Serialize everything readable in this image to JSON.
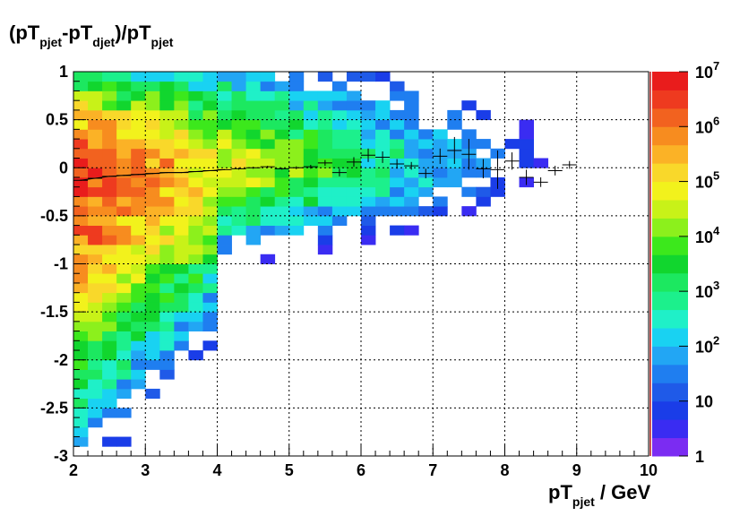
{
  "chart_data": {
    "type": "heatmap",
    "title": "",
    "ylabel_parts": [
      "(pT",
      "pjet",
      "-pT",
      "djet",
      ")/pT",
      "pjet"
    ],
    "xlabel_parts": [
      "pT",
      "pjet",
      " / GeV"
    ],
    "xlim": [
      2,
      10
    ],
    "ylim": [
      -3,
      1
    ],
    "x_bin_width": 0.2,
    "y_bin_width": 0.1,
    "grid": true,
    "color_scale": "log",
    "z_range": [
      1,
      10000000
    ],
    "x_ticks": [
      "2",
      "3",
      "4",
      "5",
      "6",
      "7",
      "8",
      "9",
      "10"
    ],
    "y_ticks": [
      "1",
      "0.5",
      "0",
      "-0.5",
      "-1",
      "-1.5",
      "-2",
      "-2.5",
      "-3"
    ],
    "colorbar_ticks": [
      {
        "base": "1",
        "exp": ""
      },
      {
        "base": "10",
        "exp": ""
      },
      {
        "base": "10",
        "exp": "2"
      },
      {
        "base": "10",
        "exp": "3"
      },
      {
        "base": "10",
        "exp": "4"
      },
      {
        "base": "10",
        "exp": "5"
      },
      {
        "base": "10",
        "exp": "6"
      },
      {
        "base": "10",
        "exp": "7"
      }
    ],
    "density_description": "2D occupancy of relative pT difference vs pT(pjet); approximate log10 counts per bin",
    "profile": {
      "x": [
        2.1,
        2.3,
        2.5,
        2.7,
        2.9,
        3.1,
        3.3,
        3.5,
        3.7,
        3.9,
        4.1,
        4.3,
        4.5,
        4.7,
        4.9,
        5.1,
        5.3,
        5.5,
        5.7,
        5.9,
        6.1,
        6.3,
        6.5,
        6.7,
        6.9,
        7.1,
        7.3,
        7.5,
        7.7,
        7.9,
        8.1,
        8.3,
        8.5,
        8.7,
        8.9
      ],
      "y": [
        -0.13,
        -0.11,
        -0.09,
        -0.08,
        -0.07,
        -0.06,
        -0.05,
        -0.05,
        -0.04,
        -0.03,
        -0.02,
        -0.01,
        0.0,
        0.01,
        -0.01,
        0.0,
        0.01,
        0.05,
        -0.05,
        0.06,
        0.13,
        0.11,
        0.04,
        0.02,
        -0.06,
        0.12,
        0.18,
        0.14,
        -0.01,
        -0.02,
        0.07,
        -0.1,
        -0.15,
        -0.03,
        0.03
      ],
      "yerr": [
        0.005,
        0.005,
        0.005,
        0.005,
        0.005,
        0.005,
        0.005,
        0.005,
        0.005,
        0.005,
        0.005,
        0.01,
        0.01,
        0.01,
        0.01,
        0.015,
        0.02,
        0.03,
        0.04,
        0.05,
        0.07,
        0.06,
        0.05,
        0.04,
        0.05,
        0.08,
        0.14,
        0.16,
        0.1,
        0.2,
        0.09,
        0.08,
        0.05,
        0.05,
        0.04
      ]
    }
  },
  "colors": {
    "frame": "#000000",
    "grid": "#000000",
    "palette": [
      "#7b2cf2",
      "#3a2cf2",
      "#1a3de8",
      "#1f5ae8",
      "#1f7ef0",
      "#22a6f4",
      "#19d2f2",
      "#1ff0c8",
      "#1cf08c",
      "#1ce860",
      "#11d62e",
      "#3ce81c",
      "#8cf01c",
      "#c8f218",
      "#f2f21c",
      "#f9d82a",
      "#fbb226",
      "#f78c1f",
      "#f2621f",
      "#ee3a1f",
      "#e91c1c"
    ],
    "colorbar_edge": "#b91c1c"
  }
}
